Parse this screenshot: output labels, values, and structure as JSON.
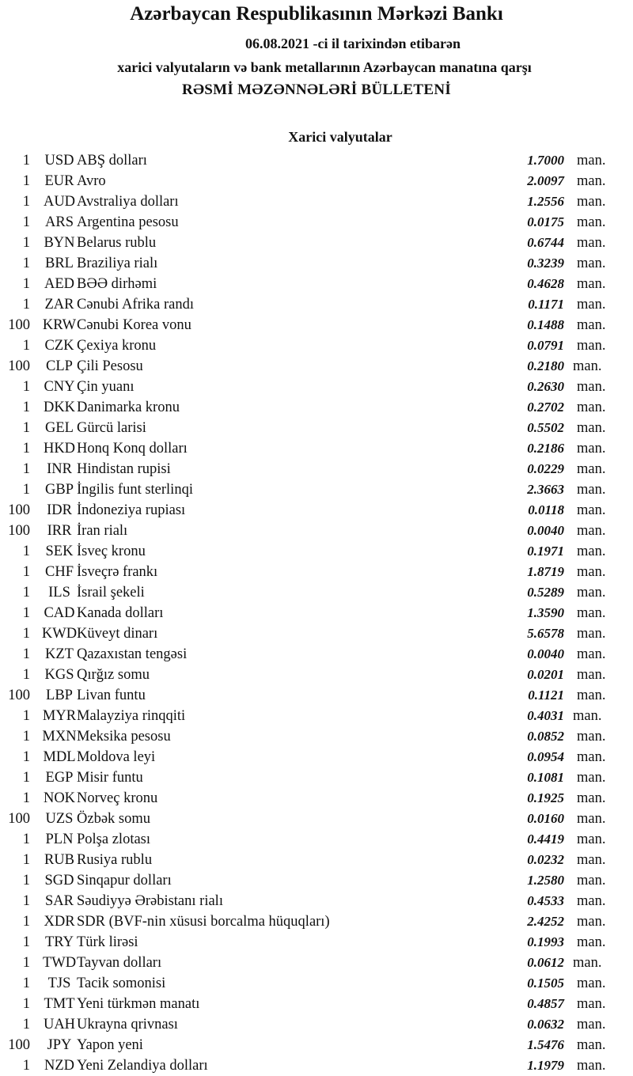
{
  "header": {
    "title": "Azərbaycan Respublikasının Mərkəzi Bankı",
    "date_line": "06.08.2021 -ci il tarixindən etibarən",
    "subtitle": "xarici valyutaların və bank metallarının Azərbaycan manatına qarşı",
    "bulletin": "RƏSMİ MƏZƏNNƏLƏRİ BÜLLETENİ"
  },
  "section_title": "Xarici valyutalar",
  "unit_label": "man.",
  "rows": [
    {
      "nominal": "1",
      "code": "USD",
      "name": "ABŞ dolları",
      "rate": "1.7000"
    },
    {
      "nominal": "1",
      "code": "EUR",
      "name": "Avro",
      "rate": "2.0097"
    },
    {
      "nominal": "1",
      "code": "AUD",
      "name": "Avstraliya dolları",
      "rate": "1.2556"
    },
    {
      "nominal": "1",
      "code": "ARS",
      "name": "Argentina pesosu",
      "rate": "0.0175"
    },
    {
      "nominal": "1",
      "code": "BYN",
      "name": "Belarus rublu",
      "rate": "0.6744"
    },
    {
      "nominal": "1",
      "code": "BRL",
      "name": "Braziliya rialı",
      "rate": "0.3239"
    },
    {
      "nominal": "1",
      "code": "AED",
      "name": "BƏƏ dirhəmi",
      "rate": "0.4628"
    },
    {
      "nominal": "1",
      "code": "ZAR",
      "name": "Cənubi Afrika randı",
      "rate": "0.1171"
    },
    {
      "nominal": "100",
      "code": "KRW",
      "name": "Cənubi Korea vonu",
      "rate": "0.1488"
    },
    {
      "nominal": "1",
      "code": "CZK",
      "name": "Çexiya kronu",
      "rate": "0.0791"
    },
    {
      "nominal": "100",
      "code": "CLP",
      "name": "Çili Pesosu",
      "rate": "0.2180"
    },
    {
      "nominal": "1",
      "code": "CNY",
      "name": "Çin yuanı",
      "rate": "0.2630"
    },
    {
      "nominal": "1",
      "code": "DKK",
      "name": "Danimarka kronu",
      "rate": "0.2702"
    },
    {
      "nominal": "1",
      "code": "GEL",
      "name": "Gürcü larisi",
      "rate": "0.5502"
    },
    {
      "nominal": "1",
      "code": "HKD",
      "name": "Honq Konq dolları",
      "rate": "0.2186"
    },
    {
      "nominal": "1",
      "code": "INR",
      "name": "Hindistan rupisi",
      "rate": "0.0229"
    },
    {
      "nominal": "1",
      "code": "GBP",
      "name": "İngilis funt sterlinqi",
      "rate": "2.3663"
    },
    {
      "nominal": "100",
      "code": "IDR",
      "name": "İndoneziya rupiası",
      "rate": "0.0118"
    },
    {
      "nominal": "100",
      "code": "IRR",
      "name": "İran rialı",
      "rate": "0.0040"
    },
    {
      "nominal": "1",
      "code": "SEK",
      "name": "İsveç kronu",
      "rate": "0.1971"
    },
    {
      "nominal": "1",
      "code": "CHF",
      "name": "İsveçrə frankı",
      "rate": "1.8719"
    },
    {
      "nominal": "1",
      "code": "ILS",
      "name": "İsrail şekeli",
      "rate": "0.5289"
    },
    {
      "nominal": "1",
      "code": "CAD",
      "name": "Kanada dolları",
      "rate": "1.3590"
    },
    {
      "nominal": "1",
      "code": "KWD",
      "name": "Küveyt dinarı",
      "rate": "5.6578"
    },
    {
      "nominal": "1",
      "code": "KZT",
      "name": "Qazaxıstan tengəsi",
      "rate": "0.0040"
    },
    {
      "nominal": "1",
      "code": "KGS",
      "name": "Qırğız somu",
      "rate": "0.0201"
    },
    {
      "nominal": "100",
      "code": "LBP",
      "name": "Livan funtu",
      "rate": "0.1121"
    },
    {
      "nominal": "1",
      "code": "MYR",
      "name": "Malayziya rinqqiti",
      "rate": "0.4031"
    },
    {
      "nominal": "1",
      "code": "MXN",
      "name": "Meksika pesosu",
      "rate": "0.0852"
    },
    {
      "nominal": "1",
      "code": "MDL",
      "name": "Moldova leyi",
      "rate": "0.0954"
    },
    {
      "nominal": "1",
      "code": "EGP",
      "name": "Misir funtu",
      "rate": "0.1081"
    },
    {
      "nominal": "1",
      "code": "NOK",
      "name": "Norveç kronu",
      "rate": "0.1925"
    },
    {
      "nominal": "100",
      "code": "UZS",
      "name": "Özbək somu",
      "rate": "0.0160"
    },
    {
      "nominal": "1",
      "code": "PLN",
      "name": "Polşa zlotası",
      "rate": "0.4419"
    },
    {
      "nominal": "1",
      "code": "RUB",
      "name": "Rusiya rublu",
      "rate": "0.0232"
    },
    {
      "nominal": "1",
      "code": "SGD",
      "name": "Sinqapur dolları",
      "rate": "1.2580"
    },
    {
      "nominal": "1",
      "code": "SAR",
      "name": "Səudiyyə Ərəbistanı rialı",
      "rate": "0.4533"
    },
    {
      "nominal": "1",
      "code": "XDR",
      "name": "SDR (BVF-nin xüsusi borcalma hüquqları)",
      "rate": "2.4252"
    },
    {
      "nominal": "1",
      "code": "TRY",
      "name": "Türk lirəsi",
      "rate": "0.1993"
    },
    {
      "nominal": "1",
      "code": "TWD",
      "name": "Tayvan dolları",
      "rate": "0.0612"
    },
    {
      "nominal": "1",
      "code": "TJS",
      "name": "Tacik somonisi",
      "rate": "0.1505"
    },
    {
      "nominal": "1",
      "code": "TMT",
      "name": "Yeni türkmən manatı",
      "rate": "0.4857"
    },
    {
      "nominal": "1",
      "code": "UAH",
      "name": "Ukrayna qrivnası",
      "rate": "0.0632"
    },
    {
      "nominal": "100",
      "code": "JPY",
      "name": "Yapon yeni",
      "rate": "1.5476"
    },
    {
      "nominal": "1",
      "code": "NZD",
      "name": "Yeni Zelandiya dolları",
      "rate": "1.1979"
    }
  ]
}
